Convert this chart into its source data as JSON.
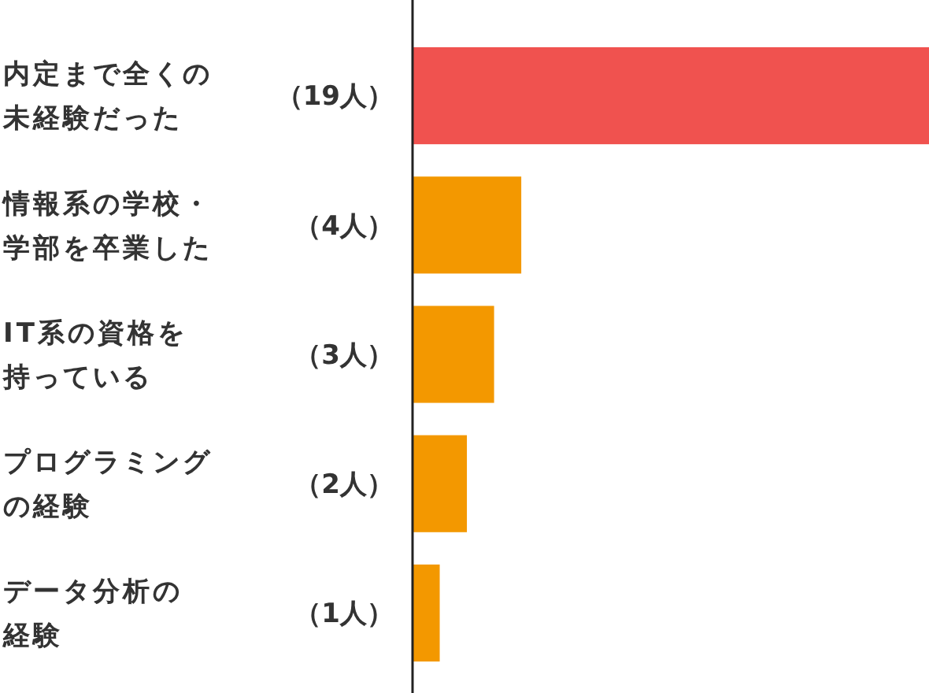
{
  "chart_data": {
    "type": "bar",
    "orientation": "horizontal",
    "categories": [
      "内定まで全くの未経験だった",
      "情報系の学校・学部を卒業した",
      "IT系の資格を持っている",
      "プログラミングの経験",
      "データ分析の経験"
    ],
    "values": [
      19,
      4,
      3,
      2,
      1
    ],
    "colors": [
      "#f0524f",
      "#f39800",
      "#f39800",
      "#f39800",
      "#f39800"
    ],
    "value_labels": [
      "（19人）",
      "（4人）",
      "（3人）",
      "（2人）",
      "（1人）"
    ],
    "xlim": [
      0,
      19
    ],
    "tick_labels": "y"
  }
}
